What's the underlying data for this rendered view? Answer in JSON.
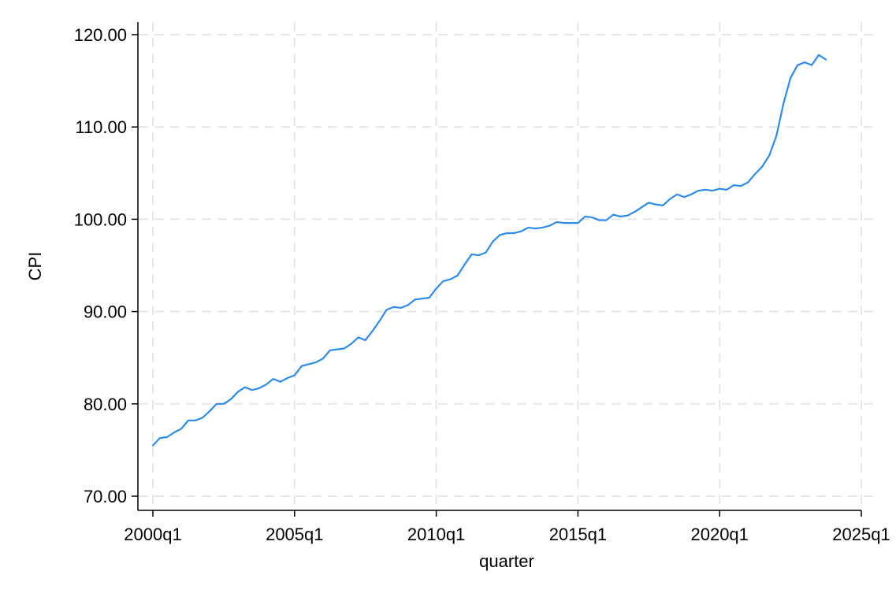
{
  "chart_data": {
    "type": "line",
    "title": "",
    "xlabel": "quarter",
    "ylabel": "CPI",
    "xlim": [
      "2000q1",
      "2025q1"
    ],
    "ylim": [
      70,
      120
    ],
    "grid": true,
    "legend": "none",
    "x_ticks": [
      {
        "value": "2000q1",
        "label": "2000q1"
      },
      {
        "value": "2005q1",
        "label": "2005q1"
      },
      {
        "value": "2010q1",
        "label": "2010q1"
      },
      {
        "value": "2015q1",
        "label": "2015q1"
      },
      {
        "value": "2020q1",
        "label": "2020q1"
      },
      {
        "value": "2025q1",
        "label": "2025q1"
      }
    ],
    "y_ticks": [
      {
        "value": 70,
        "label": "70.00"
      },
      {
        "value": 80,
        "label": "80.00"
      },
      {
        "value": 90,
        "label": "90.00"
      },
      {
        "value": 100,
        "label": "100.00"
      },
      {
        "value": 110,
        "label": "110.00"
      },
      {
        "value": 120,
        "label": "120.00"
      }
    ],
    "series": [
      {
        "color": "#2e8be6",
        "x": [
          "2000q1",
          "2000q2",
          "2000q3",
          "2000q4",
          "2001q1",
          "2001q2",
          "2001q3",
          "2001q4",
          "2002q1",
          "2002q2",
          "2002q3",
          "2002q4",
          "2003q1",
          "2003q2",
          "2003q3",
          "2003q4",
          "2004q1",
          "2004q2",
          "2004q3",
          "2004q4",
          "2005q1",
          "2005q2",
          "2005q3",
          "2005q4",
          "2006q1",
          "2006q2",
          "2006q3",
          "2006q4",
          "2007q1",
          "2007q2",
          "2007q3",
          "2007q4",
          "2008q1",
          "2008q2",
          "2008q3",
          "2008q4",
          "2009q1",
          "2009q2",
          "2009q3",
          "2009q4",
          "2010q1",
          "2010q2",
          "2010q3",
          "2010q4",
          "2011q1",
          "2011q2",
          "2011q3",
          "2011q4",
          "2012q1",
          "2012q2",
          "2012q3",
          "2012q4",
          "2013q1",
          "2013q2",
          "2013q3",
          "2013q4",
          "2014q1",
          "2014q2",
          "2014q3",
          "2014q4",
          "2015q1",
          "2015q2",
          "2015q3",
          "2015q4",
          "2016q1",
          "2016q2",
          "2016q3",
          "2016q4",
          "2017q1",
          "2017q2",
          "2017q3",
          "2017q4",
          "2018q1",
          "2018q2",
          "2018q3",
          "2018q4",
          "2019q1",
          "2019q2",
          "2019q3",
          "2019q4",
          "2020q1",
          "2020q2",
          "2020q3",
          "2020q4",
          "2021q1",
          "2021q2",
          "2021q3",
          "2021q4",
          "2022q1",
          "2022q2",
          "2022q3",
          "2022q4",
          "2023q1",
          "2023q2",
          "2023q3",
          "2023q4"
        ],
        "y": [
          75.5,
          76.3,
          76.4,
          76.9,
          77.3,
          78.2,
          78.2,
          78.5,
          79.2,
          80.0,
          80.0,
          80.5,
          81.3,
          81.8,
          81.5,
          81.7,
          82.1,
          82.7,
          82.4,
          82.8,
          83.1,
          84.1,
          84.3,
          84.5,
          84.9,
          85.8,
          85.9,
          86.0,
          86.5,
          87.2,
          86.9,
          87.9,
          89.0,
          90.2,
          90.5,
          90.4,
          90.7,
          91.3,
          91.4,
          91.5,
          92.5,
          93.3,
          93.5,
          93.9,
          95.1,
          96.2,
          96.1,
          96.4,
          97.6,
          98.3,
          98.5,
          98.5,
          98.7,
          99.1,
          99.0,
          99.1,
          99.3,
          99.7,
          99.6,
          99.6,
          99.6,
          100.3,
          100.2,
          99.9,
          99.9,
          100.5,
          100.3,
          100.4,
          100.8,
          101.3,
          101.8,
          101.6,
          101.5,
          102.2,
          102.7,
          102.4,
          102.7,
          103.1,
          103.2,
          103.1,
          103.3,
          103.2,
          103.7,
          103.6,
          104.0,
          104.9,
          105.7,
          106.9,
          109.0,
          112.5,
          115.3,
          116.7,
          117.0,
          116.7,
          117.8,
          117.3
        ]
      }
    ]
  }
}
